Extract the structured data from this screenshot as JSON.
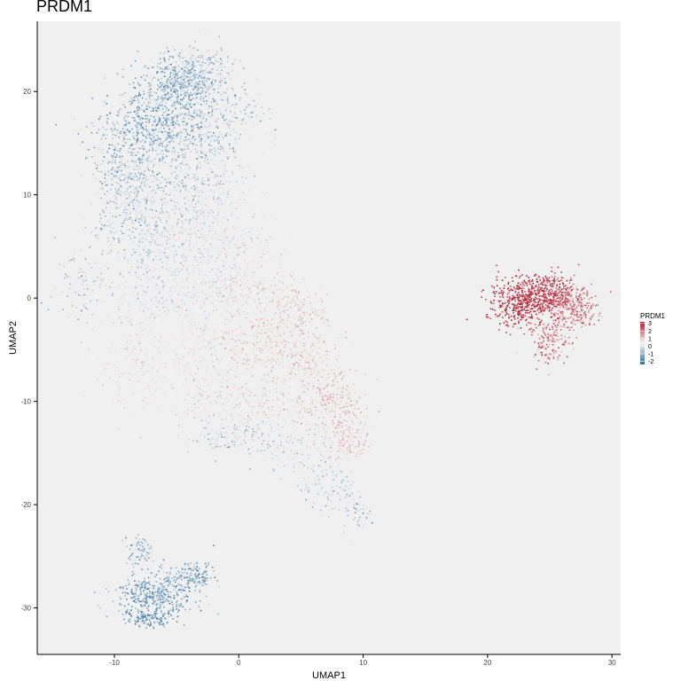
{
  "chart_data": {
    "type": "scatter",
    "title": "PRDM1",
    "xlabel": "UMAP1",
    "ylabel": "UMAP2",
    "xlim": [
      -16.2,
      30.7
    ],
    "ylim": [
      -34.5,
      26.8
    ],
    "x_ticks": [
      -10,
      0,
      10,
      20,
      30
    ],
    "y_ticks": [
      -30,
      -20,
      -10,
      0,
      10,
      20
    ],
    "x_tick_labels": [
      "-10",
      "0",
      "10",
      "20",
      "30"
    ],
    "y_tick_labels": [
      "-30",
      "-20",
      "-10",
      "0",
      "10",
      "20"
    ],
    "grid": false,
    "panel_background": "#f0f0f0",
    "legend": {
      "title": "PRDM1",
      "placement": "right",
      "labels": [
        "3",
        "2",
        "1",
        "0",
        "-1",
        "-2"
      ],
      "values": [
        3,
        2,
        1,
        0,
        -1,
        -2
      ],
      "low_color": "#2f6f9f",
      "mid_color": "#f5f5f5",
      "high_color": "#b2182b",
      "limits": [
        -2.4,
        3.2
      ]
    },
    "clusters": [
      {
        "x": -4.8,
        "y": 20.8,
        "sx": 1.6,
        "sy": 1.4,
        "n": 520,
        "value": -1.2,
        "spread": 0.6
      },
      {
        "x": -7.6,
        "y": 16.5,
        "sx": 1.9,
        "sy": 2.2,
        "n": 420,
        "value": -1.4,
        "spread": 0.5
      },
      {
        "x": -4.2,
        "y": 16.5,
        "sx": 2.2,
        "sy": 2.0,
        "n": 380,
        "value": -0.9,
        "spread": 0.6
      },
      {
        "x": -3.2,
        "y": 22.4,
        "sx": 1.3,
        "sy": 0.9,
        "n": 220,
        "value": -0.6,
        "spread": 0.6
      },
      {
        "x": -1.0,
        "y": 18.5,
        "sx": 1.6,
        "sy": 1.8,
        "n": 180,
        "value": -0.6,
        "spread": 0.5
      },
      {
        "x": -9.4,
        "y": 10.5,
        "sx": 1.2,
        "sy": 2.5,
        "n": 320,
        "value": -0.9,
        "spread": 0.5
      },
      {
        "x": -6.0,
        "y": 11.0,
        "sx": 2.2,
        "sy": 2.6,
        "n": 420,
        "value": -0.6,
        "spread": 0.5
      },
      {
        "x": -2.2,
        "y": 11.0,
        "sx": 1.7,
        "sy": 2.4,
        "n": 300,
        "value": -0.3,
        "spread": 0.5
      },
      {
        "x": -7.2,
        "y": 5.5,
        "sx": 1.8,
        "sy": 1.8,
        "n": 260,
        "value": -0.5,
        "spread": 0.4
      },
      {
        "x": -3.0,
        "y": 5.5,
        "sx": 2.0,
        "sy": 1.8,
        "n": 280,
        "value": -0.1,
        "spread": 0.4
      },
      {
        "x": 0.2,
        "y": 5.0,
        "sx": 1.4,
        "sy": 2.2,
        "n": 200,
        "value": 0.0,
        "spread": 0.4
      },
      {
        "x": -12.8,
        "y": 1.5,
        "sx": 1.0,
        "sy": 2.0,
        "n": 130,
        "value": -0.5,
        "spread": 0.5
      },
      {
        "x": -7.2,
        "y": 0.5,
        "sx": 2.2,
        "sy": 2.0,
        "n": 320,
        "value": -0.2,
        "spread": 0.4
      },
      {
        "x": -3.0,
        "y": 0.5,
        "sx": 1.8,
        "sy": 1.8,
        "n": 300,
        "value": 0.0,
        "spread": 0.4
      },
      {
        "x": 1.0,
        "y": 0.0,
        "sx": 1.6,
        "sy": 1.8,
        "n": 260,
        "value": 0.35,
        "spread": 0.4
      },
      {
        "x": 4.6,
        "y": -1.5,
        "sx": 1.2,
        "sy": 1.6,
        "n": 180,
        "value": 0.5,
        "spread": 0.4
      },
      {
        "x": -8.0,
        "y": -6.0,
        "sx": 1.6,
        "sy": 2.2,
        "n": 220,
        "value": 0.25,
        "spread": 0.3
      },
      {
        "x": -3.0,
        "y": -5.0,
        "sx": 2.0,
        "sy": 2.0,
        "n": 260,
        "value": 0.15,
        "spread": 0.3
      },
      {
        "x": 1.5,
        "y": -5.0,
        "sx": 1.8,
        "sy": 1.8,
        "n": 300,
        "value": 0.5,
        "spread": 0.35
      },
      {
        "x": 5.5,
        "y": -6.0,
        "sx": 1.3,
        "sy": 2.0,
        "n": 220,
        "value": 0.55,
        "spread": 0.35
      },
      {
        "x": -2.2,
        "y": -10.0,
        "sx": 1.6,
        "sy": 1.4,
        "n": 200,
        "value": 0.05,
        "spread": 0.4
      },
      {
        "x": 2.5,
        "y": -10.0,
        "sx": 1.8,
        "sy": 1.6,
        "n": 240,
        "value": 0.3,
        "spread": 0.4
      },
      {
        "x": 7.5,
        "y": -10.5,
        "sx": 1.3,
        "sy": 1.6,
        "n": 240,
        "value": 0.75,
        "spread": 0.35
      },
      {
        "x": 8.8,
        "y": -13.5,
        "sx": 0.9,
        "sy": 1.2,
        "n": 120,
        "value": 0.7,
        "spread": 0.35
      },
      {
        "x": -0.5,
        "y": -13.5,
        "sx": 1.8,
        "sy": 0.8,
        "n": 140,
        "value": -0.6,
        "spread": 0.5
      },
      {
        "x": 4.0,
        "y": -14.5,
        "sx": 1.5,
        "sy": 1.0,
        "n": 140,
        "value": -0.3,
        "spread": 0.5
      },
      {
        "x": 7.0,
        "y": -17.8,
        "sx": 1.2,
        "sy": 1.5,
        "n": 130,
        "value": -0.5,
        "spread": 0.5
      },
      {
        "x": 9.2,
        "y": -20.5,
        "sx": 0.6,
        "sy": 1.0,
        "n": 60,
        "value": -0.8,
        "spread": 0.5
      },
      {
        "x": -8.0,
        "y": -24.3,
        "sx": 0.6,
        "sy": 0.7,
        "n": 70,
        "value": -1.2,
        "spread": 0.5
      },
      {
        "x": -6.8,
        "y": -28.8,
        "sx": 1.6,
        "sy": 1.0,
        "n": 380,
        "value": -1.5,
        "spread": 0.5
      },
      {
        "x": -4.0,
        "y": -26.9,
        "sx": 1.0,
        "sy": 0.7,
        "n": 160,
        "value": -1.4,
        "spread": 0.5
      },
      {
        "x": -7.2,
        "y": -31.0,
        "sx": 0.9,
        "sy": 0.4,
        "n": 100,
        "value": -1.8,
        "spread": 0.4
      },
      {
        "x": 22.6,
        "y": -0.2,
        "sx": 1.3,
        "sy": 1.2,
        "n": 420,
        "value": 2.8,
        "spread": 0.4
      },
      {
        "x": 25.2,
        "y": 0.3,
        "sx": 1.3,
        "sy": 1.1,
        "n": 380,
        "value": 2.5,
        "spread": 0.5
      },
      {
        "x": 27.0,
        "y": -1.0,
        "sx": 0.9,
        "sy": 0.9,
        "n": 200,
        "value": 1.6,
        "spread": 0.5
      },
      {
        "x": 24.8,
        "y": -4.2,
        "sx": 0.8,
        "sy": 1.1,
        "n": 140,
        "value": 1.8,
        "spread": 0.6
      }
    ]
  }
}
